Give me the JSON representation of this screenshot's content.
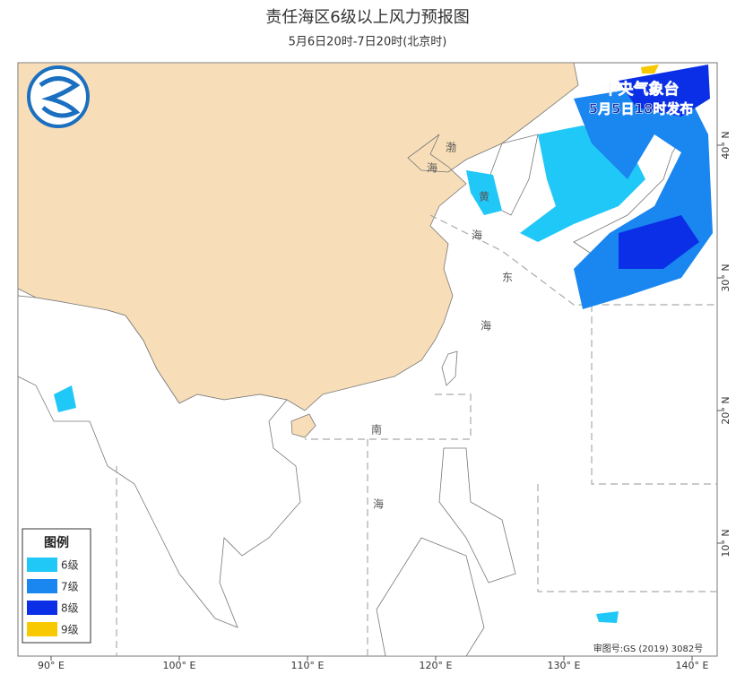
{
  "header": {
    "title": "责任海区6级以上风力预报图",
    "subtitle": "5月6日20时-7日20时(北京时)"
  },
  "issuer": {
    "name": "中央气象台",
    "time": "5月5日18时发布"
  },
  "legend": {
    "title": "图例",
    "items": [
      {
        "label": "6级",
        "color": "#20c8f8"
      },
      {
        "label": "7级",
        "color": "#1a86f0"
      },
      {
        "label": "8级",
        "color": "#0a2fe6"
      },
      {
        "label": "9级",
        "color": "#f8c800"
      }
    ]
  },
  "sea_labels": [
    "渤",
    "海",
    "黄",
    "海",
    "东",
    "海",
    "南",
    "海"
  ],
  "longitudes": [
    "90° E",
    "100° E",
    "110° E",
    "120° E",
    "130° E",
    "140° E"
  ],
  "latitudes": [
    "10° N",
    "20° N",
    "30° N",
    "40° N"
  ],
  "approval": "审图号:GS (2019) 3082号"
}
